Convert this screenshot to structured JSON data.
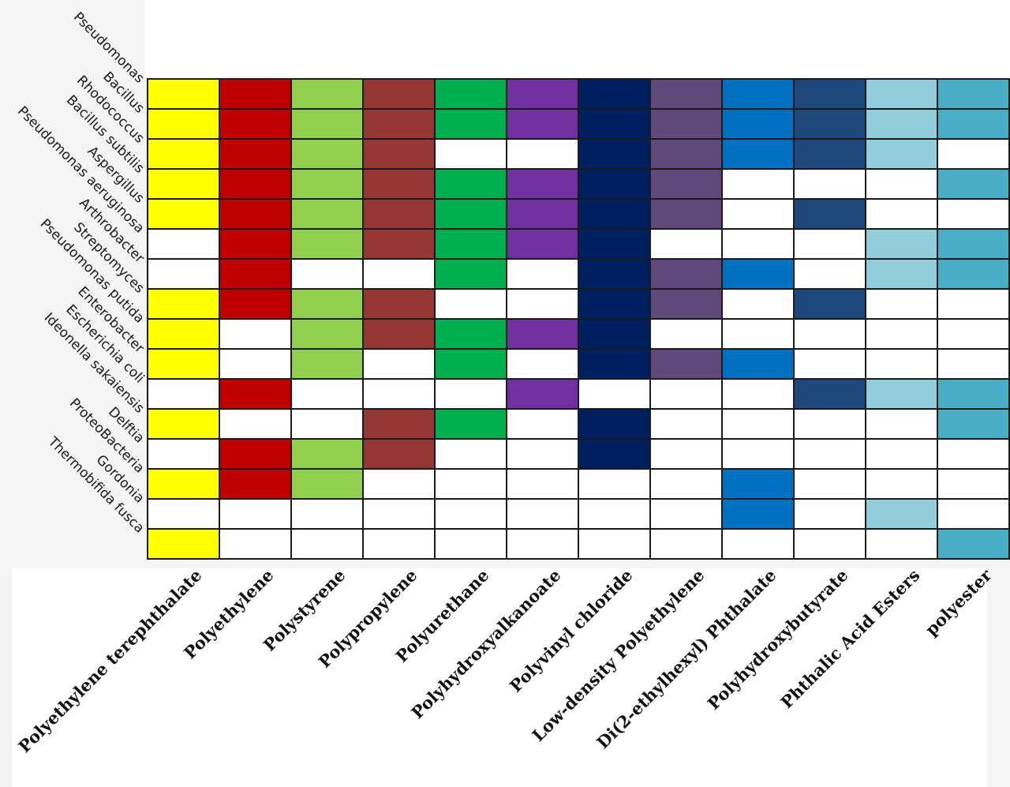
{
  "chart_data": {
    "type": "heatmap",
    "title": "",
    "rows": [
      "Pseudomonas",
      "Bacillus",
      "Rhodococcus",
      "Bacillus subtilis",
      "Aspergillus",
      "Pseudomonas aeruginosa",
      "Arthrobacter",
      "Streptomyces",
      "Pseudomonas putida",
      "Enterobacter",
      "Escherichia coli",
      "Ideonella sakaiensis",
      "Delftia",
      "ProteoBacteria",
      "Gordonia",
      "Thermobifida fusca"
    ],
    "columns": [
      "Polyethylene terephthalate",
      "Polyethylene",
      "Polystyrene",
      "Polypropylene",
      "Polyurethane",
      "Polyhydroxyalkanoate",
      "Polyvinyl chloride",
      "Low-density Polyethylene",
      "Di(2-ethylhexyl) Phthalate",
      "Polyhydroxybutyrate",
      "Phthalic Acid Esters",
      "polyester"
    ],
    "column_colors": [
      "#ffff00",
      "#c00000",
      "#92d050",
      "#953735",
      "#00b050",
      "#7030a0",
      "#002060",
      "#60497a",
      "#0070c0",
      "#1f497d",
      "#92cddc",
      "#4bacc6"
    ],
    "empty_color": "#ffffff",
    "values": [
      [
        1,
        1,
        1,
        1,
        1,
        1,
        1,
        1,
        1,
        1,
        1,
        1
      ],
      [
        1,
        1,
        1,
        1,
        1,
        1,
        1,
        1,
        1,
        1,
        1,
        1
      ],
      [
        1,
        1,
        1,
        1,
        0,
        0,
        1,
        1,
        1,
        1,
        1,
        0
      ],
      [
        1,
        1,
        1,
        1,
        1,
        1,
        1,
        1,
        0,
        0,
        0,
        1
      ],
      [
        1,
        1,
        1,
        1,
        1,
        1,
        1,
        1,
        0,
        1,
        0,
        0
      ],
      [
        0,
        1,
        1,
        1,
        1,
        1,
        1,
        0,
        0,
        0,
        1,
        1
      ],
      [
        0,
        1,
        0,
        0,
        1,
        0,
        1,
        1,
        1,
        0,
        1,
        1
      ],
      [
        1,
        1,
        1,
        1,
        0,
        0,
        1,
        1,
        0,
        1,
        0,
        0
      ],
      [
        1,
        0,
        1,
        1,
        1,
        1,
        1,
        0,
        0,
        0,
        0,
        0
      ],
      [
        1,
        0,
        1,
        0,
        1,
        0,
        1,
        1,
        1,
        0,
        0,
        0
      ],
      [
        0,
        1,
        0,
        0,
        0,
        1,
        0,
        0,
        0,
        1,
        1,
        1
      ],
      [
        1,
        0,
        0,
        1,
        1,
        0,
        1,
        0,
        0,
        0,
        0,
        1
      ],
      [
        0,
        1,
        1,
        1,
        0,
        0,
        1,
        0,
        0,
        0,
        0,
        0
      ],
      [
        1,
        1,
        1,
        0,
        0,
        0,
        0,
        0,
        1,
        0,
        0,
        0
      ],
      [
        0,
        0,
        0,
        0,
        0,
        0,
        0,
        0,
        1,
        0,
        1,
        0
      ],
      [
        1,
        0,
        0,
        0,
        0,
        0,
        0,
        0,
        0,
        0,
        0,
        1
      ]
    ]
  }
}
